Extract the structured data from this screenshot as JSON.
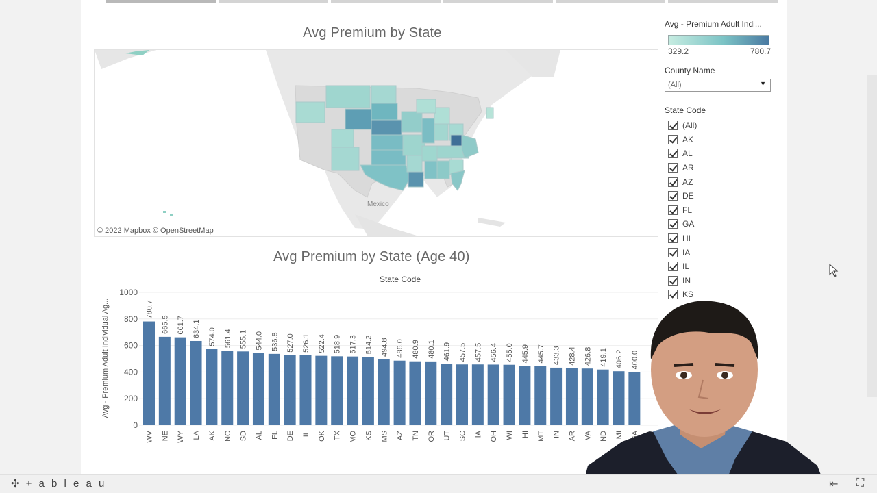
{
  "map": {
    "title": "Avg Premium by State",
    "attribution": "© 2022 Mapbox  © OpenStreetMap",
    "place_label": "Mexico"
  },
  "legend": {
    "title": "Avg - Premium Adult Indi...",
    "min": "329.2",
    "max": "780.7",
    "ramp_colors": [
      "#c6ece1",
      "#7bc3c5",
      "#4a7aa2"
    ]
  },
  "filters": {
    "county": {
      "title": "County Name",
      "value": "(All)"
    },
    "state": {
      "title": "State Code",
      "items": [
        "(All)",
        "AK",
        "AL",
        "AR",
        "AZ",
        "DE",
        "FL",
        "GA",
        "HI",
        "IA",
        "IL",
        "IN",
        "KS"
      ]
    }
  },
  "chart_data": {
    "type": "bar",
    "title": "Avg Premium by State (Age 40)",
    "xlabel": "State Code",
    "ylabel": "Avg - Premium Adult Individual Ag...",
    "ylim": [
      0,
      1000
    ],
    "yticks": [
      0,
      200,
      400,
      600,
      800,
      1000
    ],
    "bar_color": "#4e79a7",
    "categories": [
      "WV",
      "NE",
      "WY",
      "LA",
      "AK",
      "NC",
      "SD",
      "AL",
      "FL",
      "DE",
      "IL",
      "OK",
      "TX",
      "MO",
      "KS",
      "MS",
      "AZ",
      "TN",
      "OR",
      "UT",
      "SC",
      "IA",
      "OH",
      "WI",
      "HI",
      "MT",
      "IN",
      "AR",
      "VA",
      "ND",
      "MI",
      "GA"
    ],
    "values": [
      780.7,
      665.5,
      661.7,
      634.1,
      574.0,
      561.4,
      555.1,
      544.0,
      536.8,
      527.0,
      526.1,
      522.4,
      518.9,
      517.3,
      514.2,
      494.8,
      486.0,
      480.9,
      480.1,
      461.9,
      457.5,
      457.5,
      456.4,
      455.0,
      445.9,
      445.7,
      433.3,
      428.4,
      426.8,
      419.1,
      406.2,
      400.0
    ],
    "labels": [
      "780.7",
      "665.5",
      "661.7",
      "634.1",
      "574.0",
      "561.4",
      "555.1",
      "544.0",
      "536.8",
      "527.0",
      "526.1",
      "522.4",
      "518.9",
      "517.3",
      "514.2",
      "494.8",
      "486.0",
      "480.9",
      "480.1",
      "461.9",
      "457.5",
      "457.5",
      "456.4",
      "455.0",
      "445.9",
      "445.7",
      "433.3",
      "428.4",
      "426.8",
      "419.1",
      "406.2",
      "400.0"
    ]
  },
  "footer": {
    "logo": "+ a b l e a u"
  }
}
